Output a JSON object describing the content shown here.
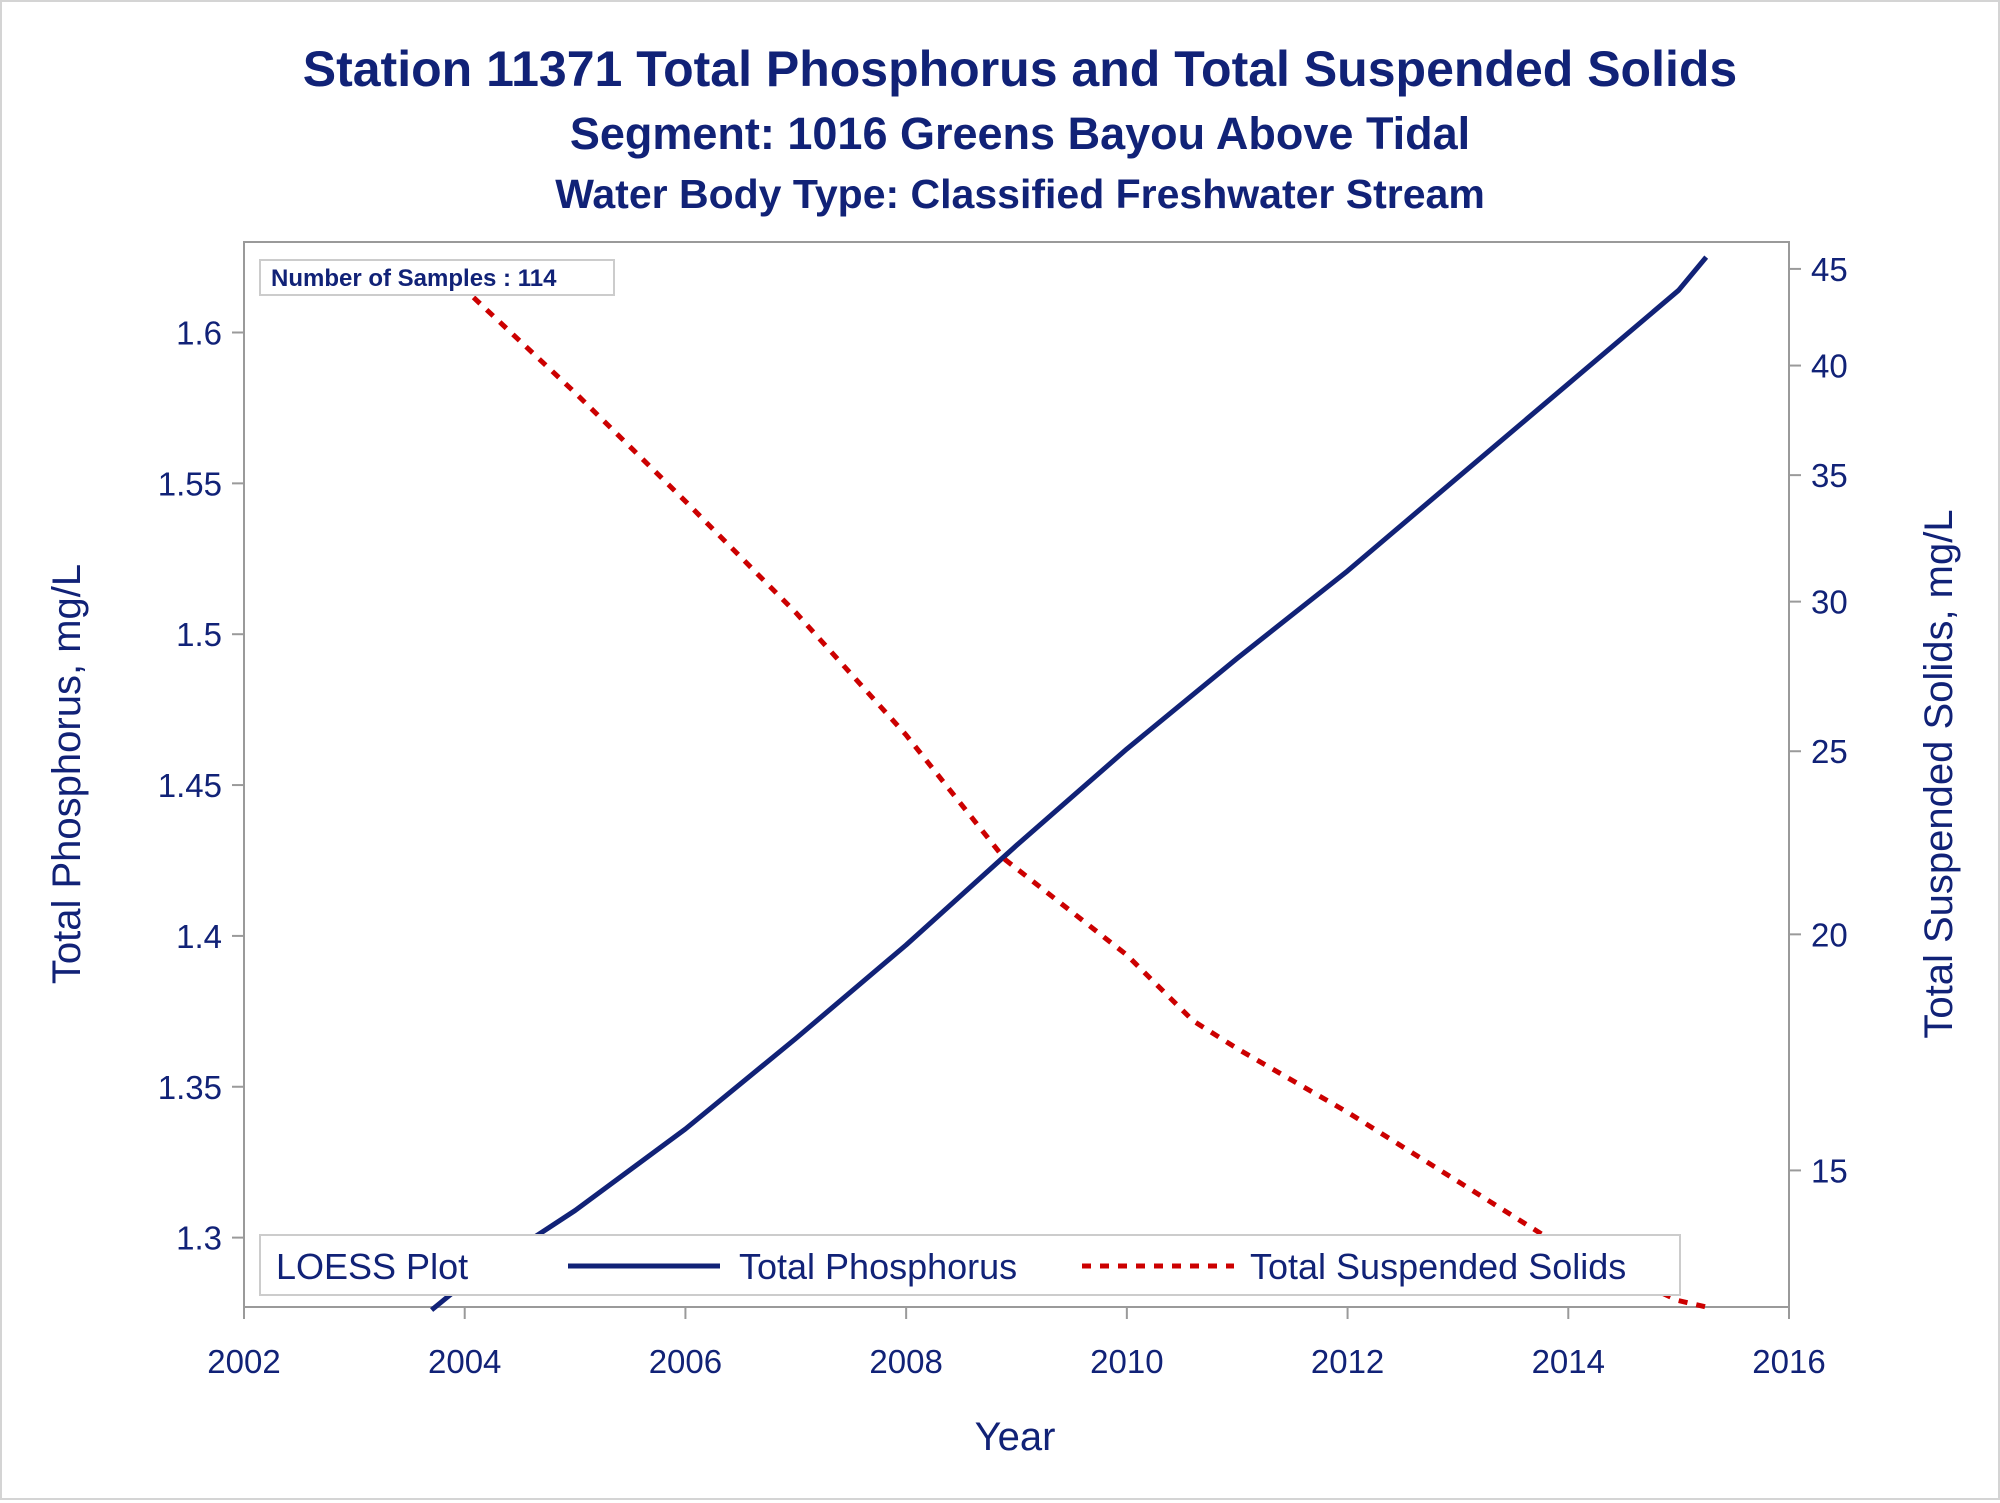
{
  "chart_data": {
    "type": "line",
    "title": "Station 11371  Total Phosphorus and Total Suspended Solids",
    "subtitle": "Segment: 1016  Greens Bayou Above Tidal",
    "subtitle2": "Water Body Type: Classified Freshwater Stream",
    "xlabel": "Year",
    "ylabel_left": "Total Phosphorus, mg/L",
    "ylabel_right": "Total Suspended Solids, mg/L",
    "xlim": [
      2002,
      2016
    ],
    "ylim_left": [
      1.277,
      1.63
    ],
    "ylim_right": [
      12.7,
      46.5
    ],
    "right_axis_scale": "log",
    "grid": false,
    "x_ticks": [
      2002,
      2004,
      2006,
      2008,
      2010,
      2012,
      2014,
      2016
    ],
    "y_left_ticks": [
      "1.3",
      "1.35",
      "1.4",
      "1.45",
      "1.5",
      "1.55",
      "1.6"
    ],
    "y_right_ticks": [
      "15",
      "20",
      "25",
      "30",
      "35",
      "40",
      "45"
    ],
    "inset_text": "Number of Samples : 114",
    "legend": {
      "title": "LOESS Plot",
      "position": "bottom",
      "entries": [
        "Total Phosphorus",
        "Total Suspended Solids"
      ]
    },
    "series": [
      {
        "name": "Total Phosphorus",
        "axis": "left",
        "style": "solid",
        "color": "#112277",
        "x": [
          2003.7,
          2004,
          2005,
          2006,
          2007,
          2008,
          2009,
          2010,
          2011,
          2012,
          2013,
          2014,
          2015,
          2015.25
        ],
        "y": [
          1.276,
          1.285,
          1.309,
          1.336,
          1.366,
          1.397,
          1.43,
          1.462,
          1.492,
          1.521,
          1.552,
          1.583,
          1.614,
          1.625
        ]
      },
      {
        "name": "Total Suspended Solids",
        "axis": "right",
        "style": "dashed",
        "color": "#cc0000",
        "x": [
          2003.7,
          2004,
          2005,
          2006,
          2007,
          2008,
          2008.9,
          2010,
          2010.6,
          2011,
          2012,
          2013,
          2014,
          2015,
          2015.25
        ],
        "y": [
          45.3,
          43.9,
          38.7,
          33.9,
          29.6,
          25.5,
          21.9,
          19.5,
          18.0,
          17.4,
          16.1,
          14.8,
          13.6,
          12.8,
          12.7
        ]
      }
    ]
  }
}
